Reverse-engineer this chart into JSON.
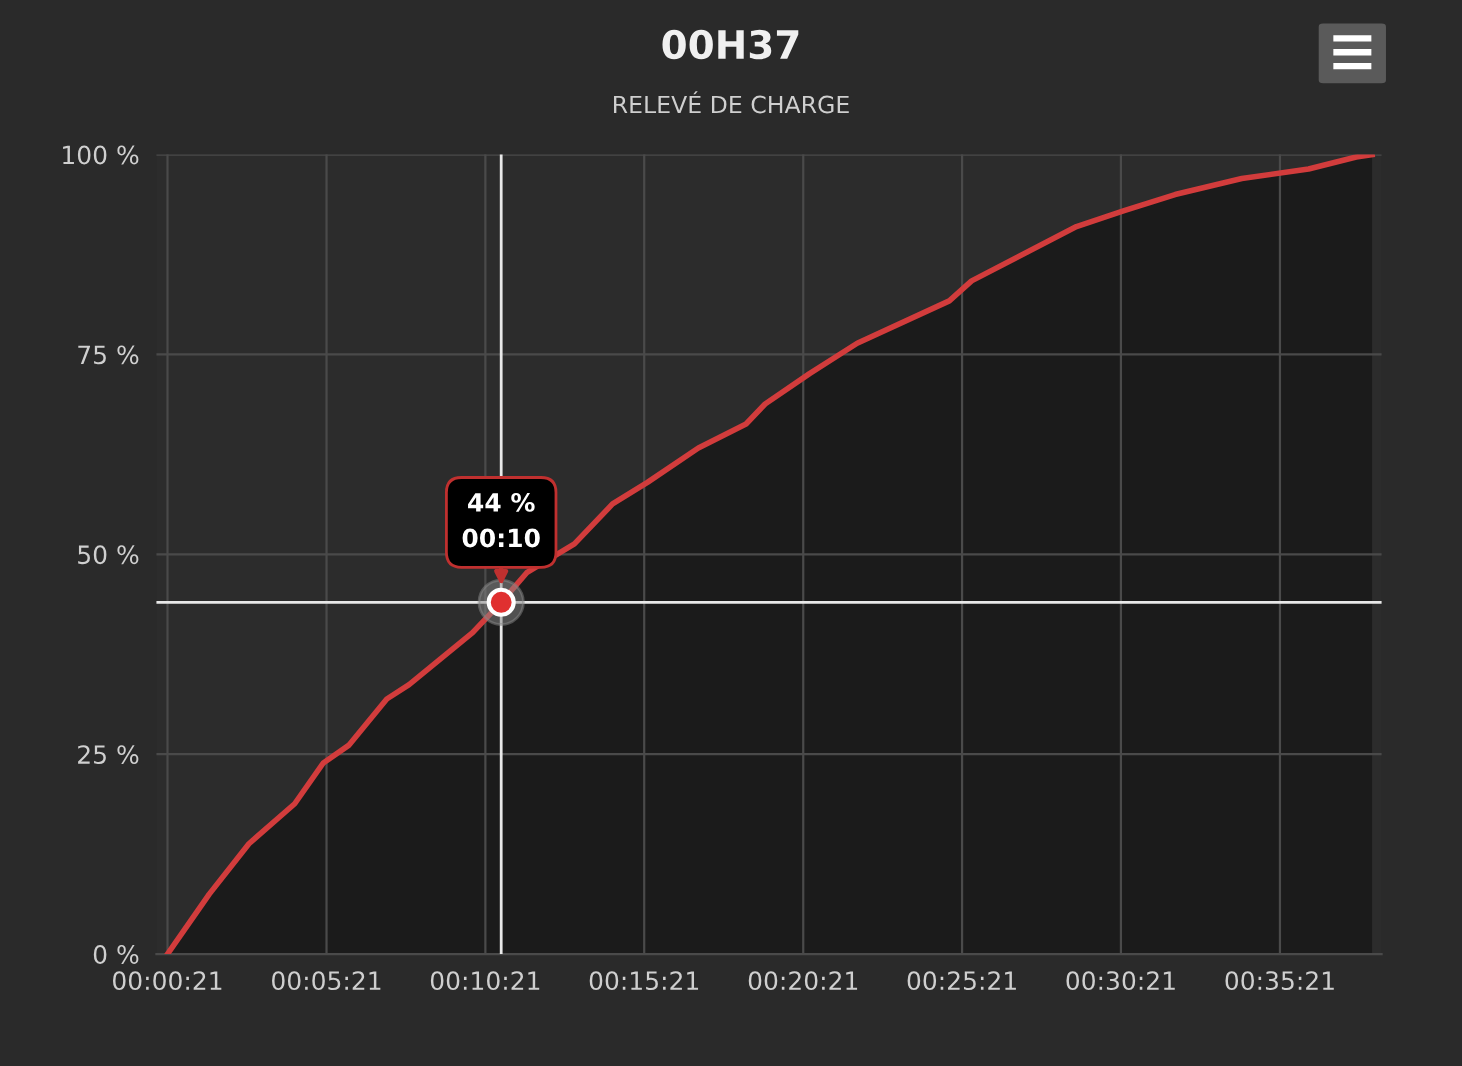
{
  "chart_data": {
    "type": "area",
    "title": "00H37",
    "subtitle": "RELEVÉ DE CHARGE",
    "x": [
      0.0058,
      0.0277,
      0.0485,
      0.0725,
      0.0875,
      0.1008,
      0.1208,
      0.1325,
      0.1658,
      0.1808,
      0.1942,
      0.2192,
      0.2392,
      0.2575,
      0.2842,
      0.3092,
      0.3192,
      0.3425,
      0.3675,
      0.4158,
      0.4275,
      0.4825,
      0.5075,
      0.5342,
      0.5692,
      0.6042,
      0.6292,
      0.6375
    ],
    "series": [
      {
        "color": "#d23c3c",
        "values": [
          0,
          7.5,
          13.8,
          18.8,
          23.9,
          26.1,
          31.9,
          33.7,
          40.2,
          44,
          47.7,
          51.3,
          56.3,
          59,
          63.3,
          66.3,
          68.8,
          72.6,
          76.4,
          81.7,
          84.2,
          91,
          93,
          95,
          97,
          98.2,
          99.7,
          100
        ]
      }
    ],
    "xlim": [
      0,
      0.6425
    ],
    "ylim": [
      0,
      100
    ],
    "xticks": [
      {
        "value": 0.0058,
        "label": "00:00:21"
      },
      {
        "value": 0.0892,
        "label": "00:05:21"
      },
      {
        "value": 0.1725,
        "label": "00:10:21"
      },
      {
        "value": 0.2558,
        "label": "00:15:21"
      },
      {
        "value": 0.3392,
        "label": "00:20:21"
      },
      {
        "value": 0.4225,
        "label": "00:25:21"
      },
      {
        "value": 0.5058,
        "label": "00:30:21"
      },
      {
        "value": 0.5892,
        "label": "00:35:21"
      }
    ],
    "yticks": [
      {
        "value": 0,
        "label": "0 %"
      },
      {
        "value": 25,
        "label": "25 %"
      },
      {
        "value": 50,
        "label": "50 %"
      },
      {
        "value": 75,
        "label": "75 %"
      },
      {
        "value": 100,
        "label": "100 %"
      }
    ],
    "grid": true,
    "ref_lines": [
      {
        "axis": "x",
        "value": 0.1808,
        "color": "#e8e8e8"
      },
      {
        "axis": "y",
        "value": 44,
        "color": "#e8e8e8"
      }
    ],
    "annotations": [
      {
        "text": "44 %\n00:10",
        "x": 0.1808,
        "y": 44
      }
    ]
  }
}
